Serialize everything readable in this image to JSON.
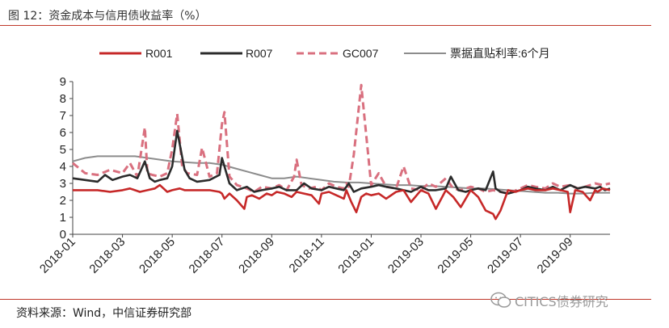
{
  "figure": {
    "title": "图 12：资金成本与信用债收益率（%）",
    "source": "资料来源：Wind，中信证券研究部",
    "watermark": "CITICS债券研究"
  },
  "chart_data": {
    "type": "line",
    "title": "资金成本与信用债收益率（%）",
    "xlabel": "",
    "ylabel": "",
    "ylim": [
      0,
      9
    ],
    "yticks": [
      "0",
      "1",
      "2",
      "3",
      "4",
      "5",
      "6",
      "7",
      "8",
      "9"
    ],
    "xlim": [
      "2018-01",
      "2019-10"
    ],
    "xticks": [
      "2018-01",
      "2018-03",
      "2018-05",
      "2018-07",
      "2018-09",
      "2018-11",
      "2019-01",
      "2019-03",
      "2019-05",
      "2019-07",
      "2019-09"
    ],
    "legend_position": "top",
    "series": [
      {
        "name": "R001",
        "color": "#c62828",
        "dash": "solid",
        "x": [
          0,
          1,
          1.5,
          2,
          2.3,
          2.5,
          2.7,
          3,
          3.3,
          3.5,
          3.8,
          4,
          4.3,
          4.5,
          5,
          5.5,
          5.9,
          6,
          6.1,
          6.3,
          6.6,
          6.9,
          7,
          7.2,
          7.5,
          7.8,
          8,
          8.2,
          8.5,
          8.8,
          9,
          9.3,
          9.6,
          9.9,
          10,
          10.3,
          10.6,
          10.9,
          11,
          11.2,
          11.4,
          11.6,
          11.8,
          12,
          12.3,
          12.6,
          13,
          13.3,
          13.6,
          14,
          14.3,
          14.6,
          15,
          15.3,
          15.6,
          16,
          16.3,
          16.6,
          16.9,
          17,
          17.2,
          17.5,
          17.8,
          18,
          18.3,
          18.6,
          19,
          19.3,
          19.6,
          19.9,
          20,
          20.2,
          20.5,
          20.8,
          21,
          21.1,
          21.3,
          21.6
        ],
        "values": [
          2.6,
          2.6,
          2.5,
          2.6,
          2.7,
          2.6,
          2.5,
          2.6,
          2.7,
          2.9,
          2.5,
          2.6,
          2.7,
          2.6,
          2.6,
          2.6,
          2.5,
          2.4,
          2.1,
          2.4,
          2.0,
          1.5,
          2.2,
          2.3,
          2.1,
          2.4,
          2.3,
          2.5,
          2.4,
          2.2,
          2.5,
          2.4,
          2.3,
          1.8,
          2.4,
          2.5,
          2.3,
          2.1,
          2.6,
          1.9,
          1.3,
          2.2,
          2.4,
          2.3,
          2.4,
          2.1,
          2.5,
          2.6,
          1.9,
          2.6,
          2.4,
          1.5,
          2.6,
          2.2,
          1.6,
          2.6,
          2.2,
          1.4,
          1.2,
          0.9,
          1.4,
          2.6,
          2.5,
          2.6,
          2.7,
          2.6,
          2.6,
          2.7,
          2.6,
          2.5,
          1.3,
          2.6,
          2.5,
          2.0,
          2.6,
          2.5,
          2.7,
          2.6
        ]
      },
      {
        "name": "R007",
        "color": "#2b2b2b",
        "dash": "solid",
        "x": [
          0,
          0.5,
          1,
          1.3,
          1.6,
          2,
          2.3,
          2.6,
          2.9,
          3.1,
          3.3,
          3.5,
          3.8,
          4,
          4.2,
          4.5,
          4.7,
          5,
          5.5,
          5.9,
          6,
          6.3,
          6.6,
          7,
          7.3,
          7.6,
          8,
          8.3,
          8.6,
          9,
          9.3,
          9.6,
          10,
          10.3,
          10.6,
          10.9,
          11,
          11.1,
          11.3,
          11.6,
          12,
          12.3,
          12.6,
          13,
          13.3,
          13.6,
          14,
          14.3,
          14.6,
          15,
          15.2,
          15.5,
          15.8,
          16,
          16.3,
          16.6,
          16.9,
          17,
          17.2,
          17.5,
          18,
          18.3,
          18.6,
          19,
          19.3,
          19.6,
          20,
          20.3,
          20.6,
          21,
          21.2,
          21.4,
          21.6
        ],
        "values": [
          3.3,
          3.2,
          3.1,
          3.5,
          3.2,
          3.4,
          3.5,
          3.3,
          4.3,
          3.3,
          3.1,
          3.2,
          3.3,
          4.0,
          6.1,
          3.8,
          3.3,
          3.1,
          3.2,
          3.5,
          4.5,
          3.0,
          2.6,
          2.8,
          2.5,
          2.6,
          2.7,
          2.8,
          2.6,
          2.6,
          3.0,
          2.7,
          2.6,
          2.8,
          2.7,
          2.6,
          2.8,
          3.0,
          2.5,
          2.7,
          2.8,
          2.9,
          2.8,
          2.7,
          2.6,
          2.5,
          2.8,
          2.6,
          2.6,
          2.7,
          3.4,
          2.6,
          2.5,
          2.6,
          2.7,
          2.6,
          3.7,
          2.7,
          2.5,
          2.4,
          2.6,
          2.8,
          2.7,
          2.6,
          2.8,
          2.6,
          2.9,
          2.7,
          2.8,
          2.7,
          2.8,
          2.6,
          2.7
        ]
      },
      {
        "name": "GC007",
        "color": "#d9707f",
        "dash": "dashed",
        "x": [
          0,
          0.5,
          1,
          1.5,
          2,
          2.3,
          2.6,
          2.9,
          3.0,
          3.2,
          3.5,
          3.8,
          4.0,
          4.2,
          4.4,
          4.6,
          5,
          5.2,
          5.5,
          5.8,
          6,
          6.1,
          6.3,
          6.6,
          7,
          7.3,
          7.6,
          8,
          8.3,
          8.6,
          8.9,
          9,
          9.2,
          9.5,
          9.8,
          10,
          10.3,
          10.6,
          10.9,
          11,
          11.1,
          11.3,
          11.6,
          12,
          12.3,
          12.6,
          13,
          13.3,
          13.6,
          14,
          14.3,
          14.6,
          15,
          15.3,
          15.6,
          16,
          16.3,
          16.6,
          16.9,
          17.2,
          17.5,
          18,
          18.3,
          18.6,
          19,
          19.3,
          19.6,
          20,
          20.3,
          20.6,
          21,
          21.3,
          21.6
        ],
        "values": [
          4.2,
          3.6,
          3.5,
          3.8,
          3.6,
          4.2,
          3.4,
          6.3,
          3.6,
          3.5,
          3.4,
          3.6,
          5.0,
          7.1,
          4.0,
          3.6,
          3.5,
          5.1,
          3.4,
          3.6,
          6.5,
          7.2,
          3.4,
          2.9,
          2.7,
          2.5,
          2.8,
          2.7,
          2.9,
          2.6,
          3.4,
          4.4,
          2.9,
          2.7,
          2.8,
          2.6,
          3.0,
          2.8,
          2.7,
          3.0,
          2.8,
          4.7,
          8.8,
          2.9,
          3.6,
          2.8,
          2.7,
          4.0,
          2.7,
          2.6,
          3.0,
          2.8,
          3.3,
          2.7,
          2.6,
          2.8,
          2.7,
          2.5,
          2.6,
          2.5,
          2.4,
          2.7,
          2.9,
          2.8,
          2.7,
          3.0,
          2.8,
          2.9,
          2.7,
          2.8,
          3.0,
          2.9,
          3.0
        ]
      },
      {
        "name": "票据直贴利率:6个月",
        "color": "#8c8c8c",
        "dash": "solid",
        "x": [
          0,
          0.5,
          1,
          1.5,
          2,
          2.5,
          3,
          3.5,
          4,
          4.5,
          5,
          5.5,
          6,
          6.5,
          7,
          7.5,
          8,
          8.5,
          9,
          9.5,
          10,
          10.5,
          11,
          11.5,
          12,
          12.5,
          13,
          13.5,
          14,
          14.5,
          15,
          15.5,
          16,
          16.5,
          17,
          17.5,
          18,
          18.5,
          19,
          19.5,
          20,
          20.5,
          21,
          21.6
        ],
        "values": [
          4.3,
          4.5,
          4.6,
          4.6,
          4.6,
          4.6,
          4.5,
          4.4,
          4.3,
          4.25,
          4.2,
          4.2,
          4.1,
          3.9,
          3.7,
          3.5,
          3.3,
          3.3,
          3.4,
          3.3,
          3.2,
          3.1,
          3.05,
          3.05,
          3.0,
          2.95,
          2.9,
          2.9,
          2.85,
          2.85,
          2.8,
          2.75,
          2.7,
          2.7,
          2.65,
          2.6,
          2.55,
          2.5,
          2.45,
          2.45,
          2.4,
          2.4,
          2.45,
          2.45
        ]
      }
    ]
  }
}
